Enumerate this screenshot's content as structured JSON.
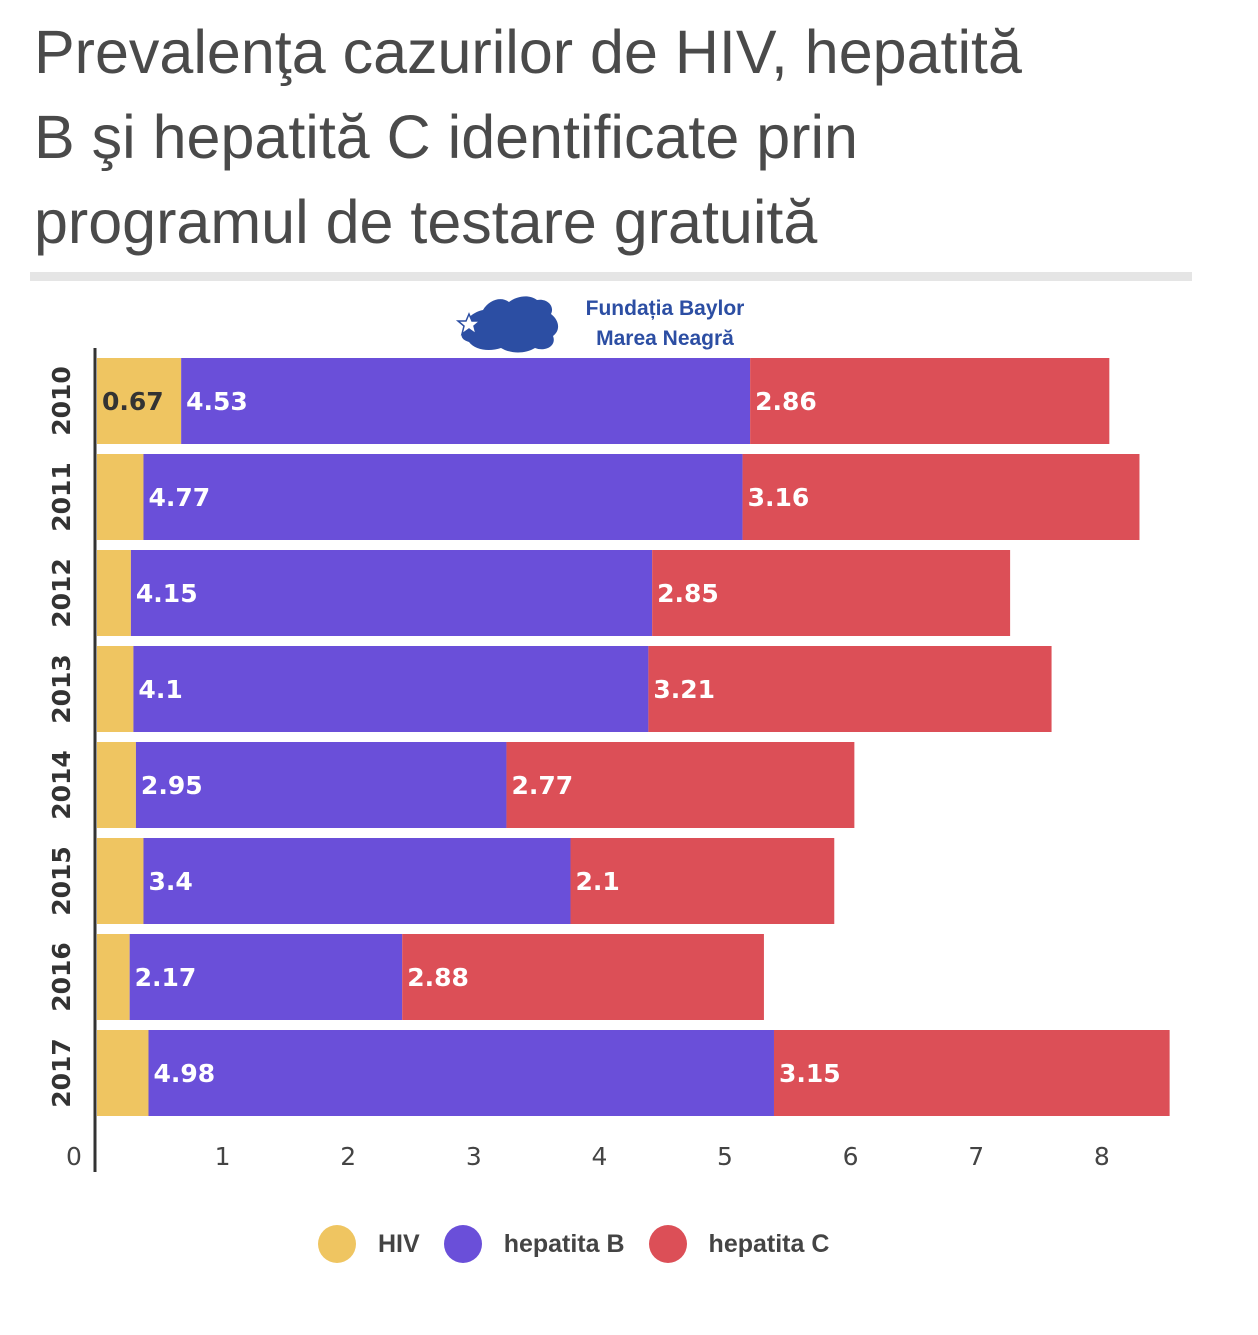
{
  "title": "Prevalenţa cazurilor de HIV, hepatită\nB şi hepatită C identificate prin\nprogramul de testare gratuită",
  "logo": {
    "line1": "Fundația Baylor",
    "line2": "Marea Neagră",
    "icon": "black-sea-map-icon",
    "color": "#2c4ea3"
  },
  "chart_data": {
    "type": "bar",
    "orientation": "horizontal",
    "stacked": true,
    "categories": [
      "2010",
      "2011",
      "2012",
      "2013",
      "2014",
      "2015",
      "2016",
      "2017"
    ],
    "series": [
      {
        "name": "HIV",
        "color": "#efc561",
        "values": [
          0.67,
          0.37,
          0.27,
          0.29,
          0.31,
          0.37,
          0.26,
          0.41
        ],
        "labels": [
          "0.67",
          "",
          "",
          "",
          "",
          "",
          "",
          ""
        ]
      },
      {
        "name": "hepatita B",
        "color": "#6a4fd9",
        "values": [
          4.53,
          4.77,
          4.15,
          4.1,
          2.95,
          3.4,
          2.17,
          4.98
        ],
        "labels": [
          "4.53",
          "4.77",
          "4.15",
          "4.1",
          "2.95",
          "3.4",
          "2.17",
          "4.98"
        ]
      },
      {
        "name": "hepatita C",
        "color": "#dc4f57",
        "values": [
          2.86,
          3.16,
          2.85,
          3.21,
          2.77,
          2.1,
          2.88,
          3.15
        ],
        "labels": [
          "2.86",
          "3.16",
          "2.85",
          "3.21",
          "2.77",
          "2.1",
          "2.88",
          "3.15"
        ]
      }
    ],
    "xlim": [
      0,
      8.7
    ],
    "xticks": [
      0,
      1,
      2,
      3,
      4,
      5,
      6,
      7,
      8
    ],
    "xlabel": "",
    "ylabel": "",
    "grid": false,
    "legend_position": "bottom"
  }
}
